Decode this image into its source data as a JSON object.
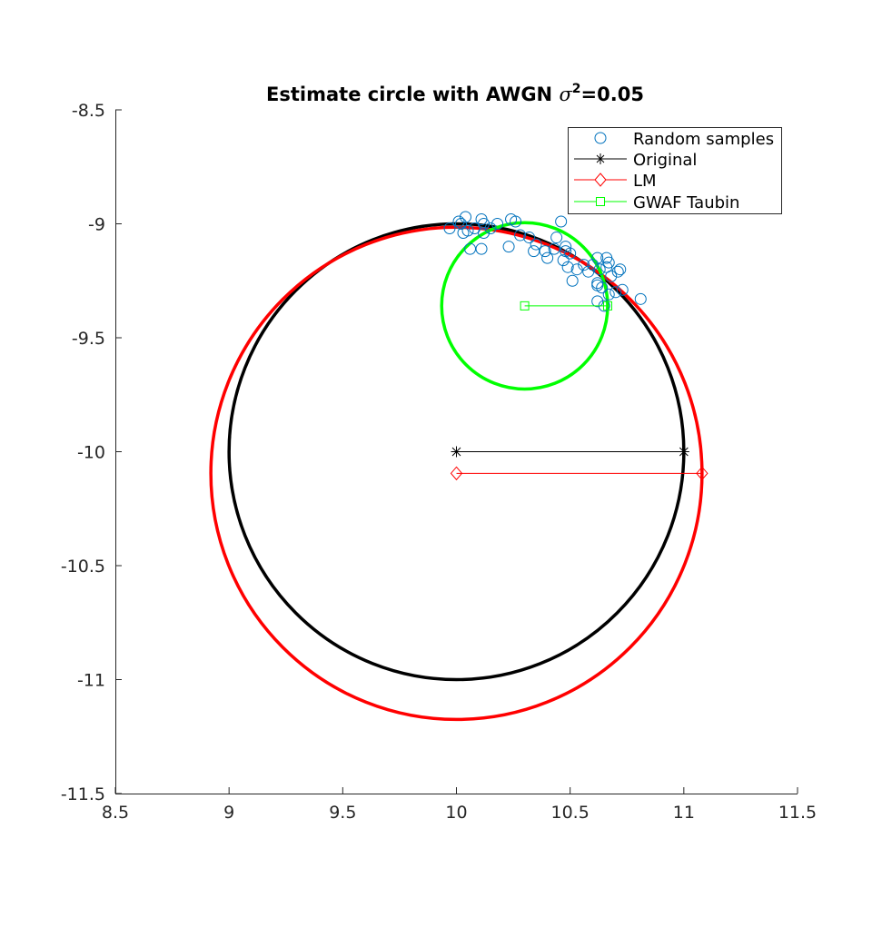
{
  "chart_data": {
    "type": "scatter",
    "title": "Estimate circle with AWGN",
    "title_suffix": "=0.05",
    "title_symbol": "σ",
    "title_superscript": "2",
    "xlim": [
      8.5,
      11.5
    ],
    "ylim": [
      -11.5,
      -8.5
    ],
    "xticks": [
      8.5,
      9,
      9.5,
      10,
      10.5,
      11,
      11.5
    ],
    "yticks": [
      -8.5,
      -9,
      -9.5,
      -10,
      -10.5,
      -11,
      -11.5
    ],
    "xtick_labels": [
      "8.5",
      "9",
      "9.5",
      "10",
      "10.5",
      "11",
      "11.5"
    ],
    "ytick_labels": [
      "-8.5",
      "-9",
      "-9.5",
      "-10",
      "-10.5",
      "-11",
      "-11.5"
    ],
    "grid": false,
    "legend_position": "top-right",
    "legend": [
      "Random samples",
      "Original",
      "LM",
      "GWAF Taubin"
    ],
    "samples": [
      [
        9.97,
        -9.02
      ],
      [
        10.01,
        -8.99
      ],
      [
        10.04,
        -8.97
      ],
      [
        10.02,
        -9.0
      ],
      [
        10.05,
        -9.03
      ],
      [
        10.08,
        -9.02
      ],
      [
        10.11,
        -8.98
      ],
      [
        10.12,
        -9.0
      ],
      [
        10.15,
        -9.02
      ],
      [
        10.18,
        -9.0
      ],
      [
        10.24,
        -8.98
      ],
      [
        10.26,
        -8.99
      ],
      [
        10.03,
        -9.04
      ],
      [
        10.12,
        -9.04
      ],
      [
        10.06,
        -9.11
      ],
      [
        10.11,
        -9.11
      ],
      [
        10.23,
        -9.1
      ],
      [
        10.28,
        -9.05
      ],
      [
        10.32,
        -9.06
      ],
      [
        10.35,
        -9.09
      ],
      [
        10.34,
        -9.12
      ],
      [
        10.39,
        -9.12
      ],
      [
        10.4,
        -9.15
      ],
      [
        10.43,
        -9.11
      ],
      [
        10.44,
        -9.06
      ],
      [
        10.46,
        -8.99
      ],
      [
        10.48,
        -9.1
      ],
      [
        10.48,
        -9.12
      ],
      [
        10.5,
        -9.13
      ],
      [
        10.47,
        -9.16
      ],
      [
        10.49,
        -9.19
      ],
      [
        10.51,
        -9.25
      ],
      [
        10.53,
        -9.2
      ],
      [
        10.56,
        -9.18
      ],
      [
        10.58,
        -9.21
      ],
      [
        10.6,
        -9.18
      ],
      [
        10.62,
        -9.15
      ],
      [
        10.63,
        -9.2
      ],
      [
        10.66,
        -9.15
      ],
      [
        10.66,
        -9.19
      ],
      [
        10.67,
        -9.17
      ],
      [
        10.68,
        -9.23
      ],
      [
        10.71,
        -9.21
      ],
      [
        10.72,
        -9.2
      ],
      [
        10.62,
        -9.26
      ],
      [
        10.62,
        -9.27
      ],
      [
        10.64,
        -9.28
      ],
      [
        10.67,
        -9.31
      ],
      [
        10.7,
        -9.3
      ],
      [
        10.73,
        -9.29
      ],
      [
        10.81,
        -9.33
      ],
      [
        10.62,
        -9.34
      ],
      [
        10.65,
        -9.36
      ]
    ],
    "series": [
      {
        "name": "Original",
        "color": "#000000",
        "marker": "asterisk",
        "center": [
          10.0,
          -10.0
        ],
        "radius": 1.0
      },
      {
        "name": "LM",
        "color": "#ff0000",
        "marker": "diamond",
        "center": [
          10.0,
          -10.095
        ],
        "radius": 1.08
      },
      {
        "name": "GWAF Taubin",
        "color": "#00ff00",
        "marker": "square",
        "center": [
          10.3,
          -9.36
        ],
        "radius": 0.365
      }
    ],
    "sample_color": "#0072bd"
  }
}
